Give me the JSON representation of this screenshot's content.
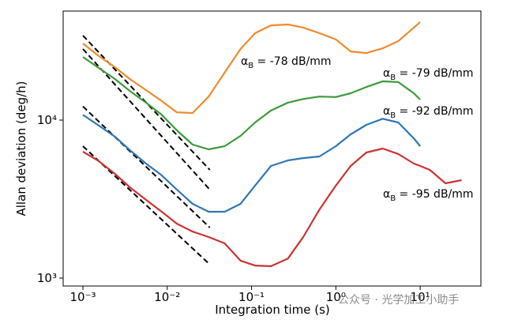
{
  "chart_data": {
    "type": "line",
    "xlabel": "Integration time (s)",
    "ylabel": "Allan deviation (deg/h)",
    "xscale": "log",
    "yscale": "log",
    "xlim": [
      0.000583,
      52.5
    ],
    "ylim": [
      891,
      49000
    ],
    "xticks": [
      {
        "value": 0.001,
        "label": "10⁻³"
      },
      {
        "value": 0.01,
        "label": "10⁻²"
      },
      {
        "value": 0.1,
        "label": "10⁻¹"
      },
      {
        "value": 1,
        "label": "10⁰"
      },
      {
        "value": 10,
        "label": "10¹"
      }
    ],
    "yticks": [
      {
        "value": 1000,
        "label": "10³"
      },
      {
        "value": 10000,
        "label": "10⁴"
      }
    ],
    "x": [
      0.001,
      0.0015,
      0.0024,
      0.0036,
      0.0056,
      0.0086,
      0.013,
      0.02,
      0.031,
      0.048,
      0.074,
      0.11,
      0.17,
      0.27,
      0.41,
      0.64,
      1,
      1.5,
      2.3,
      3.6,
      5.5,
      8.4,
      10,
      13,
      20,
      31
    ],
    "series": [
      {
        "color": "#ee8a2e",
        "values": [
          30550,
          25700,
          21600,
          18200,
          15500,
          13200,
          11200,
          11100,
          14100,
          20000,
          28200,
          35500,
          39800,
          40300,
          38500,
          35500,
          32400,
          27200,
          26600,
          28500,
          31600,
          38500,
          41700,
          null,
          null,
          null
        ]
      },
      {
        "color": "#3c9a3c",
        "values": [
          25100,
          21600,
          18200,
          15300,
          12900,
          10800,
          8610,
          7000,
          6530,
          6840,
          7940,
          9660,
          11500,
          12900,
          13600,
          14100,
          14000,
          14800,
          16200,
          17600,
          17400,
          14800,
          13500,
          null,
          null,
          null
        ]
      },
      {
        "color": "#2f77b4",
        "values": [
          10800,
          9330,
          7850,
          6460,
          5310,
          4470,
          3630,
          2950,
          2630,
          2630,
          2950,
          3850,
          5130,
          5560,
          5750,
          5890,
          6840,
          8130,
          9330,
          10200,
          9660,
          7670,
          6840,
          null,
          null,
          null
        ]
      },
      {
        "color": "#cc3333",
        "values": [
          6310,
          5560,
          4570,
          3760,
          3130,
          2630,
          2210,
          1970,
          1820,
          1660,
          1290,
          1200,
          1190,
          1330,
          1820,
          2720,
          3850,
          5130,
          6240,
          6610,
          6100,
          5310,
          5130,
          4840,
          3980,
          4170
        ]
      }
    ],
    "reference_lines": [
      {
        "x": [
          0.001,
          0.032
        ],
        "values": [
          34300,
          4840
        ],
        "color": "#000000"
      },
      {
        "x": [
          0.001,
          0.032
        ],
        "values": [
          28200,
          3630
        ],
        "color": "#000000"
      },
      {
        "x": [
          0.001,
          0.032
        ],
        "values": [
          12200,
          2090
        ],
        "color": "#000000"
      },
      {
        "x": [
          0.001,
          0.032
        ],
        "values": [
          6840,
          1220
        ],
        "color": "#000000"
      }
    ],
    "annotations": [
      {
        "symbol": "α",
        "sub": "B",
        "text": " = -78 dB/mm"
      },
      {
        "symbol": "α",
        "sub": "B",
        "text": " = -79 dB/mm"
      },
      {
        "symbol": "α",
        "sub": "B",
        "text": " = -92 dB/mm"
      },
      {
        "symbol": "α",
        "sub": "B",
        "text": " = -95 dB/mm"
      }
    ],
    "watermark": "公众号 · 光学加工小助手"
  }
}
